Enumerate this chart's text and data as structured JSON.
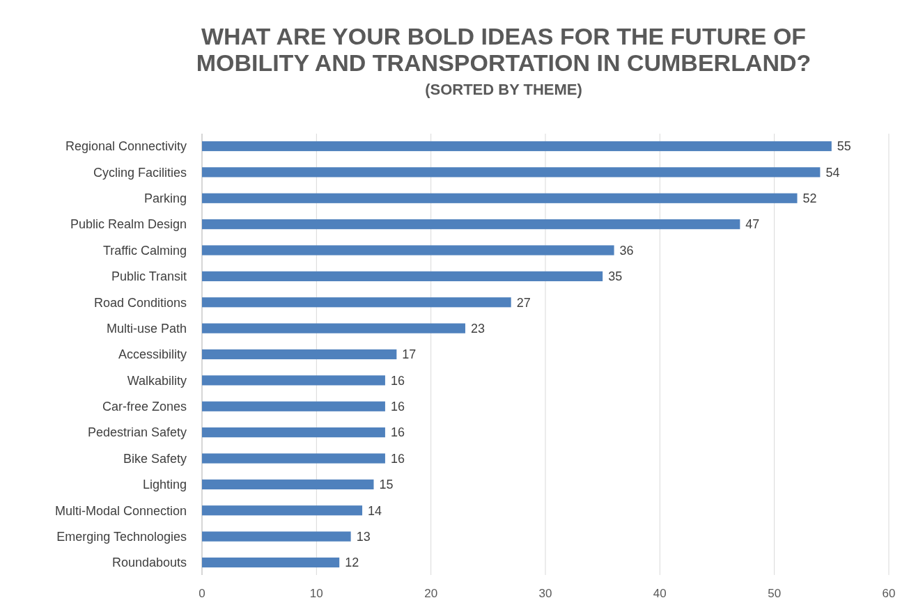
{
  "chart_data": {
    "type": "bar",
    "orientation": "horizontal",
    "title": "WHAT ARE YOUR BOLD IDEAS FOR THE FUTURE OF MOBILITY AND TRANSPORTATION IN CUMBERLAND?",
    "subtitle": "(SORTED BY THEME)",
    "categories": [
      "Regional Connectivity",
      "Cycling Facilities",
      "Parking",
      "Public Realm Design",
      "Traffic Calming",
      "Public Transit",
      "Road Conditions",
      "Multi-use Path",
      "Accessibility",
      "Walkability",
      "Car-free Zones",
      "Pedestrian Safety",
      "Bike Safety",
      "Lighting",
      "Multi-Modal Connection",
      "Emerging Technologies",
      "Roundabouts"
    ],
    "values": [
      55,
      54,
      52,
      47,
      36,
      35,
      27,
      23,
      17,
      16,
      16,
      16,
      16,
      15,
      14,
      13,
      12
    ],
    "color": "#4f81bd",
    "xlim": [
      0,
      60
    ],
    "xticks": [
      0,
      10,
      20,
      30,
      40,
      50,
      60
    ],
    "grid": "x",
    "data_labels": true
  }
}
